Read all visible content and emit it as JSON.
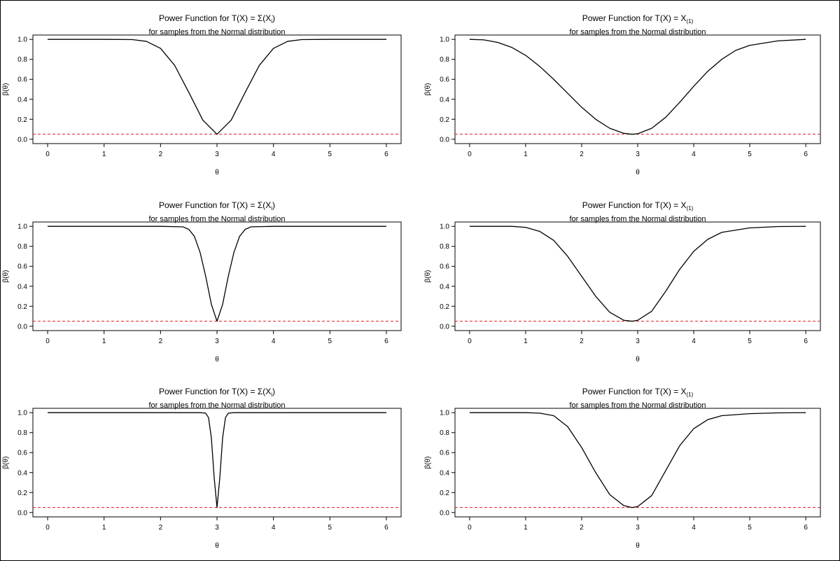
{
  "chart_data": [
    {
      "type": "line",
      "title_main": "Power Function for T(X) = Σ(X",
      "title_sub": "i",
      "title_close": ")",
      "subtitle": "for samples from the Normal distribution",
      "xlabel": "θ",
      "ylabel": "β(θ)",
      "xlim": [
        0,
        6
      ],
      "ylim": [
        0,
        1
      ],
      "xticks": [
        "0",
        "1",
        "2",
        "3",
        "4",
        "5",
        "6"
      ],
      "yticks": [
        "0.0",
        "0.2",
        "0.4",
        "0.6",
        "0.8",
        "1.0"
      ],
      "x": [
        0,
        1,
        1.5,
        1.75,
        2,
        2.25,
        2.5,
        2.75,
        3,
        3.25,
        3.5,
        3.75,
        4,
        4.25,
        4.5,
        5,
        6
      ],
      "series": [
        {
          "values": [
            1,
            1,
            0.998,
            0.98,
            0.91,
            0.74,
            0.47,
            0.19,
            0.05,
            0.19,
            0.47,
            0.74,
            0.91,
            0.98,
            0.998,
            1,
            1
          ]
        }
      ],
      "reference_line": 0.05
    },
    {
      "type": "line",
      "title_main": "Power Function for T(X) = X",
      "title_sub": "(1)",
      "title_close": "",
      "subtitle": "for samples from the Normal distribution",
      "xlabel": "θ",
      "ylabel": "β(θ)",
      "xlim": [
        0,
        6
      ],
      "ylim": [
        0,
        1
      ],
      "xticks": [
        "0",
        "1",
        "2",
        "3",
        "4",
        "5",
        "6"
      ],
      "yticks": [
        "0.0",
        "0.2",
        "0.4",
        "0.6",
        "0.8",
        "1.0"
      ],
      "x": [
        0,
        0.25,
        0.5,
        0.75,
        1,
        1.25,
        1.5,
        1.75,
        2,
        2.25,
        2.5,
        2.75,
        2.9,
        3,
        3.25,
        3.5,
        3.75,
        4,
        4.25,
        4.5,
        4.75,
        5,
        5.5,
        6
      ],
      "series": [
        {
          "values": [
            1,
            0.995,
            0.97,
            0.92,
            0.84,
            0.73,
            0.6,
            0.46,
            0.32,
            0.2,
            0.11,
            0.06,
            0.05,
            0.055,
            0.11,
            0.22,
            0.37,
            0.53,
            0.68,
            0.8,
            0.89,
            0.94,
            0.985,
            1
          ]
        }
      ],
      "reference_line": 0.05
    },
    {
      "type": "line",
      "title_main": "Power Function for T(X) = Σ(X",
      "title_sub": "i",
      "title_close": ")",
      "subtitle": "for samples from the Normal distribution",
      "xlabel": "θ",
      "ylabel": "β(θ)",
      "xlim": [
        0,
        6
      ],
      "ylim": [
        0,
        1
      ],
      "xticks": [
        "0",
        "1",
        "2",
        "3",
        "4",
        "5",
        "6"
      ],
      "yticks": [
        "0.0",
        "0.2",
        "0.4",
        "0.6",
        "0.8",
        "1.0"
      ],
      "x": [
        0,
        2,
        2.4,
        2.5,
        2.6,
        2.7,
        2.8,
        2.9,
        3,
        3.1,
        3.2,
        3.3,
        3.4,
        3.5,
        3.6,
        4,
        6
      ],
      "series": [
        {
          "values": [
            1,
            1,
            0.995,
            0.97,
            0.9,
            0.74,
            0.5,
            0.22,
            0.05,
            0.22,
            0.5,
            0.74,
            0.9,
            0.97,
            0.995,
            1,
            1
          ]
        }
      ],
      "reference_line": 0.05
    },
    {
      "type": "line",
      "title_main": "Power Function for T(X) = X",
      "title_sub": "(1)",
      "title_close": "",
      "subtitle": "for samples from the Normal distribution",
      "xlabel": "θ",
      "ylabel": "β(θ)",
      "xlim": [
        0,
        6
      ],
      "ylim": [
        0,
        1
      ],
      "xticks": [
        "0",
        "1",
        "2",
        "3",
        "4",
        "5",
        "6"
      ],
      "yticks": [
        "0.0",
        "0.2",
        "0.4",
        "0.6",
        "0.8",
        "1.0"
      ],
      "x": [
        0,
        0.75,
        1,
        1.25,
        1.5,
        1.75,
        2,
        2.25,
        2.5,
        2.75,
        2.9,
        3,
        3.25,
        3.5,
        3.75,
        4,
        4.25,
        4.5,
        5,
        5.5,
        6
      ],
      "series": [
        {
          "values": [
            1,
            1,
            0.99,
            0.95,
            0.86,
            0.7,
            0.5,
            0.3,
            0.14,
            0.06,
            0.05,
            0.06,
            0.15,
            0.35,
            0.57,
            0.75,
            0.87,
            0.94,
            0.985,
            0.998,
            1
          ]
        }
      ],
      "reference_line": 0.05
    },
    {
      "type": "line",
      "title_main": "Power Function for T(X) = Σ(X",
      "title_sub": "i",
      "title_close": ")",
      "subtitle": "for samples from the Normal distribution",
      "xlabel": "θ",
      "ylabel": "β(θ)",
      "xlim": [
        0,
        6
      ],
      "ylim": [
        0,
        1
      ],
      "xticks": [
        "0",
        "1",
        "2",
        "3",
        "4",
        "5",
        "6"
      ],
      "yticks": [
        "0.0",
        "0.2",
        "0.4",
        "0.6",
        "0.8",
        "1.0"
      ],
      "x": [
        0,
        2.7,
        2.8,
        2.85,
        2.9,
        2.95,
        3,
        3.05,
        3.1,
        3.15,
        3.2,
        3.3,
        6
      ],
      "series": [
        {
          "values": [
            1,
            1,
            0.995,
            0.95,
            0.75,
            0.35,
            0.05,
            0.35,
            0.75,
            0.95,
            0.995,
            1,
            1
          ]
        }
      ],
      "reference_line": 0.05
    },
    {
      "type": "line",
      "title_main": "Power Function for T(X) = X",
      "title_sub": "(1)",
      "title_close": "",
      "subtitle": "for samples from the Normal distribution",
      "xlabel": "θ",
      "ylabel": "β(θ)",
      "xlim": [
        0,
        6
      ],
      "ylim": [
        0,
        1
      ],
      "xticks": [
        "0",
        "1",
        "2",
        "3",
        "4",
        "5",
        "6"
      ],
      "yticks": [
        "0.0",
        "0.2",
        "0.4",
        "0.6",
        "0.8",
        "1.0"
      ],
      "x": [
        0,
        1,
        1.25,
        1.5,
        1.75,
        2,
        2.25,
        2.5,
        2.75,
        2.9,
        3,
        3.25,
        3.5,
        3.75,
        4,
        4.25,
        4.5,
        5,
        5.5,
        6
      ],
      "series": [
        {
          "values": [
            1,
            1,
            0.995,
            0.97,
            0.86,
            0.65,
            0.4,
            0.18,
            0.07,
            0.05,
            0.06,
            0.17,
            0.42,
            0.67,
            0.84,
            0.93,
            0.97,
            0.99,
            0.998,
            1
          ]
        }
      ],
      "reference_line": 0.05
    }
  ]
}
